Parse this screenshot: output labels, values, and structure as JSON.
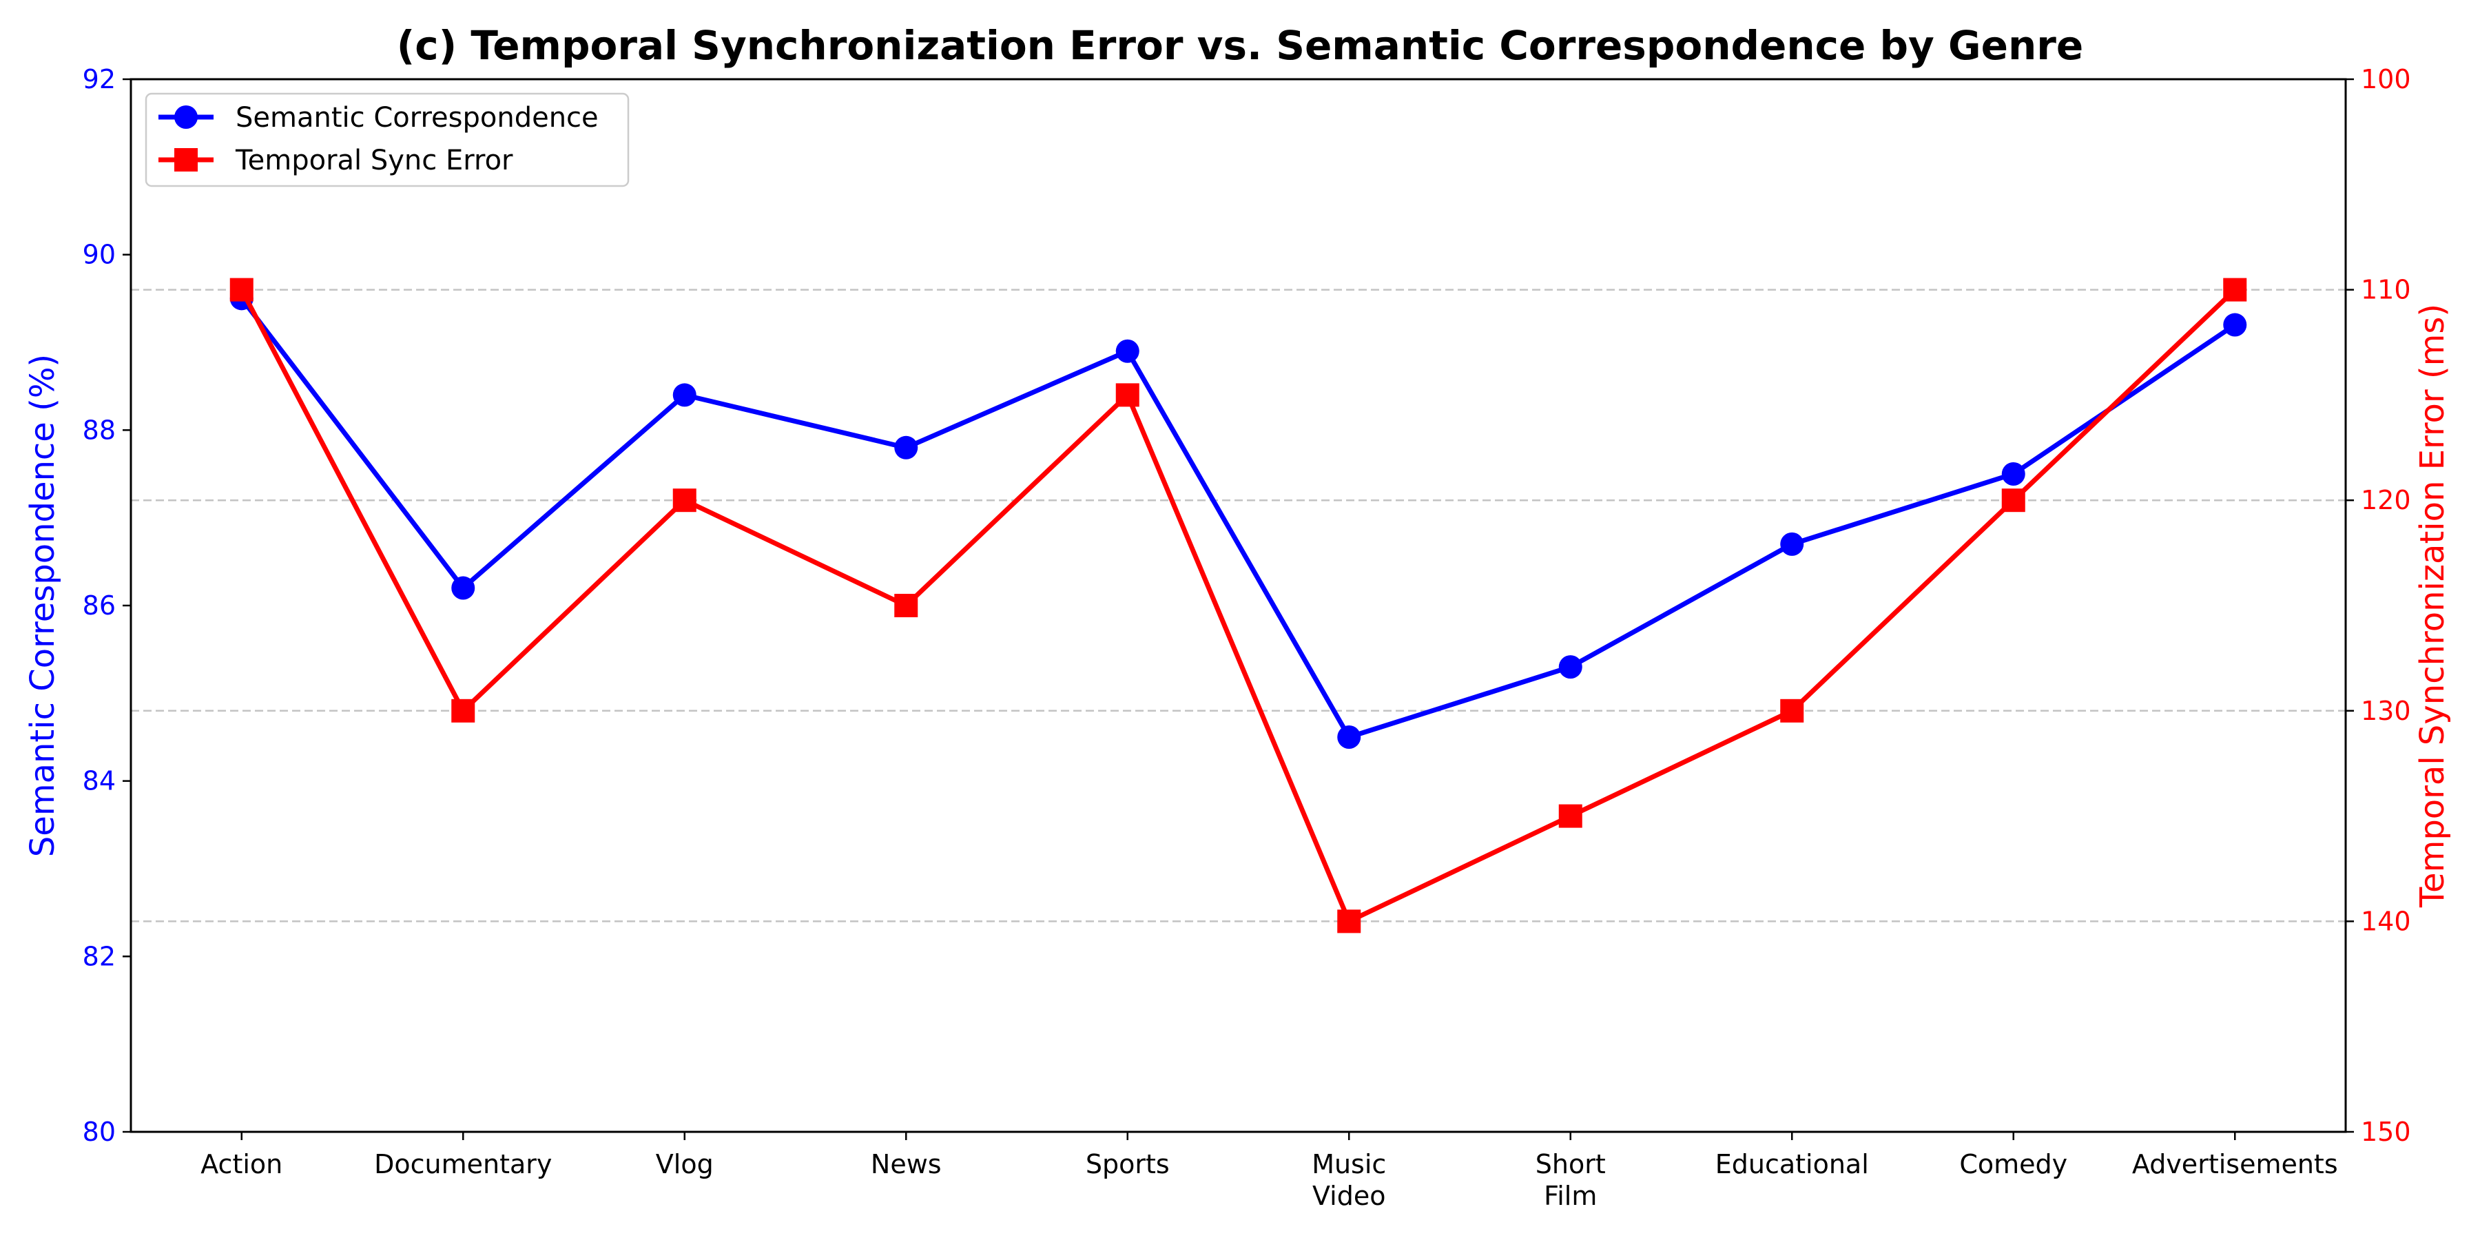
{
  "chart_data": {
    "type": "line",
    "title": "(c) Temporal Synchronization Error vs. Semantic Correspondence by Genre",
    "categories": [
      [
        "Action"
      ],
      [
        "Documentary"
      ],
      [
        "Vlog"
      ],
      [
        "News"
      ],
      [
        "Sports"
      ],
      [
        "Music",
        "Video"
      ],
      [
        "Short",
        "Film"
      ],
      [
        "Educational"
      ],
      [
        "Comedy"
      ],
      [
        "Advertisements"
      ]
    ],
    "y_left": {
      "label": "Semantic Correspondence (%)",
      "range": [
        80,
        92
      ],
      "ticks": [
        "80",
        "82",
        "84",
        "86",
        "88",
        "90",
        "92"
      ],
      "color": "#0000ff"
    },
    "y_right": {
      "label": "Temporal Synchronization Error (ms)",
      "range": [
        150,
        100
      ],
      "inverted": true,
      "ticks": [
        "100",
        "110",
        "120",
        "130",
        "140",
        "150"
      ],
      "color": "#ff0000"
    },
    "series": [
      {
        "name": "Semantic Correspondence",
        "axis": "left",
        "marker": "circle",
        "color": "#0000ff",
        "values": [
          89.5,
          86.2,
          88.4,
          87.8,
          88.9,
          84.5,
          85.3,
          86.7,
          87.5,
          89.2
        ]
      },
      {
        "name": "Temporal Sync Error",
        "axis": "right",
        "marker": "square",
        "color": "#ff0000",
        "values": [
          110,
          130,
          120,
          125,
          115,
          140,
          135,
          130,
          120,
          110
        ]
      }
    ],
    "grid": "horizontal dashed (right axis ticks)",
    "legend": "top-left"
  }
}
